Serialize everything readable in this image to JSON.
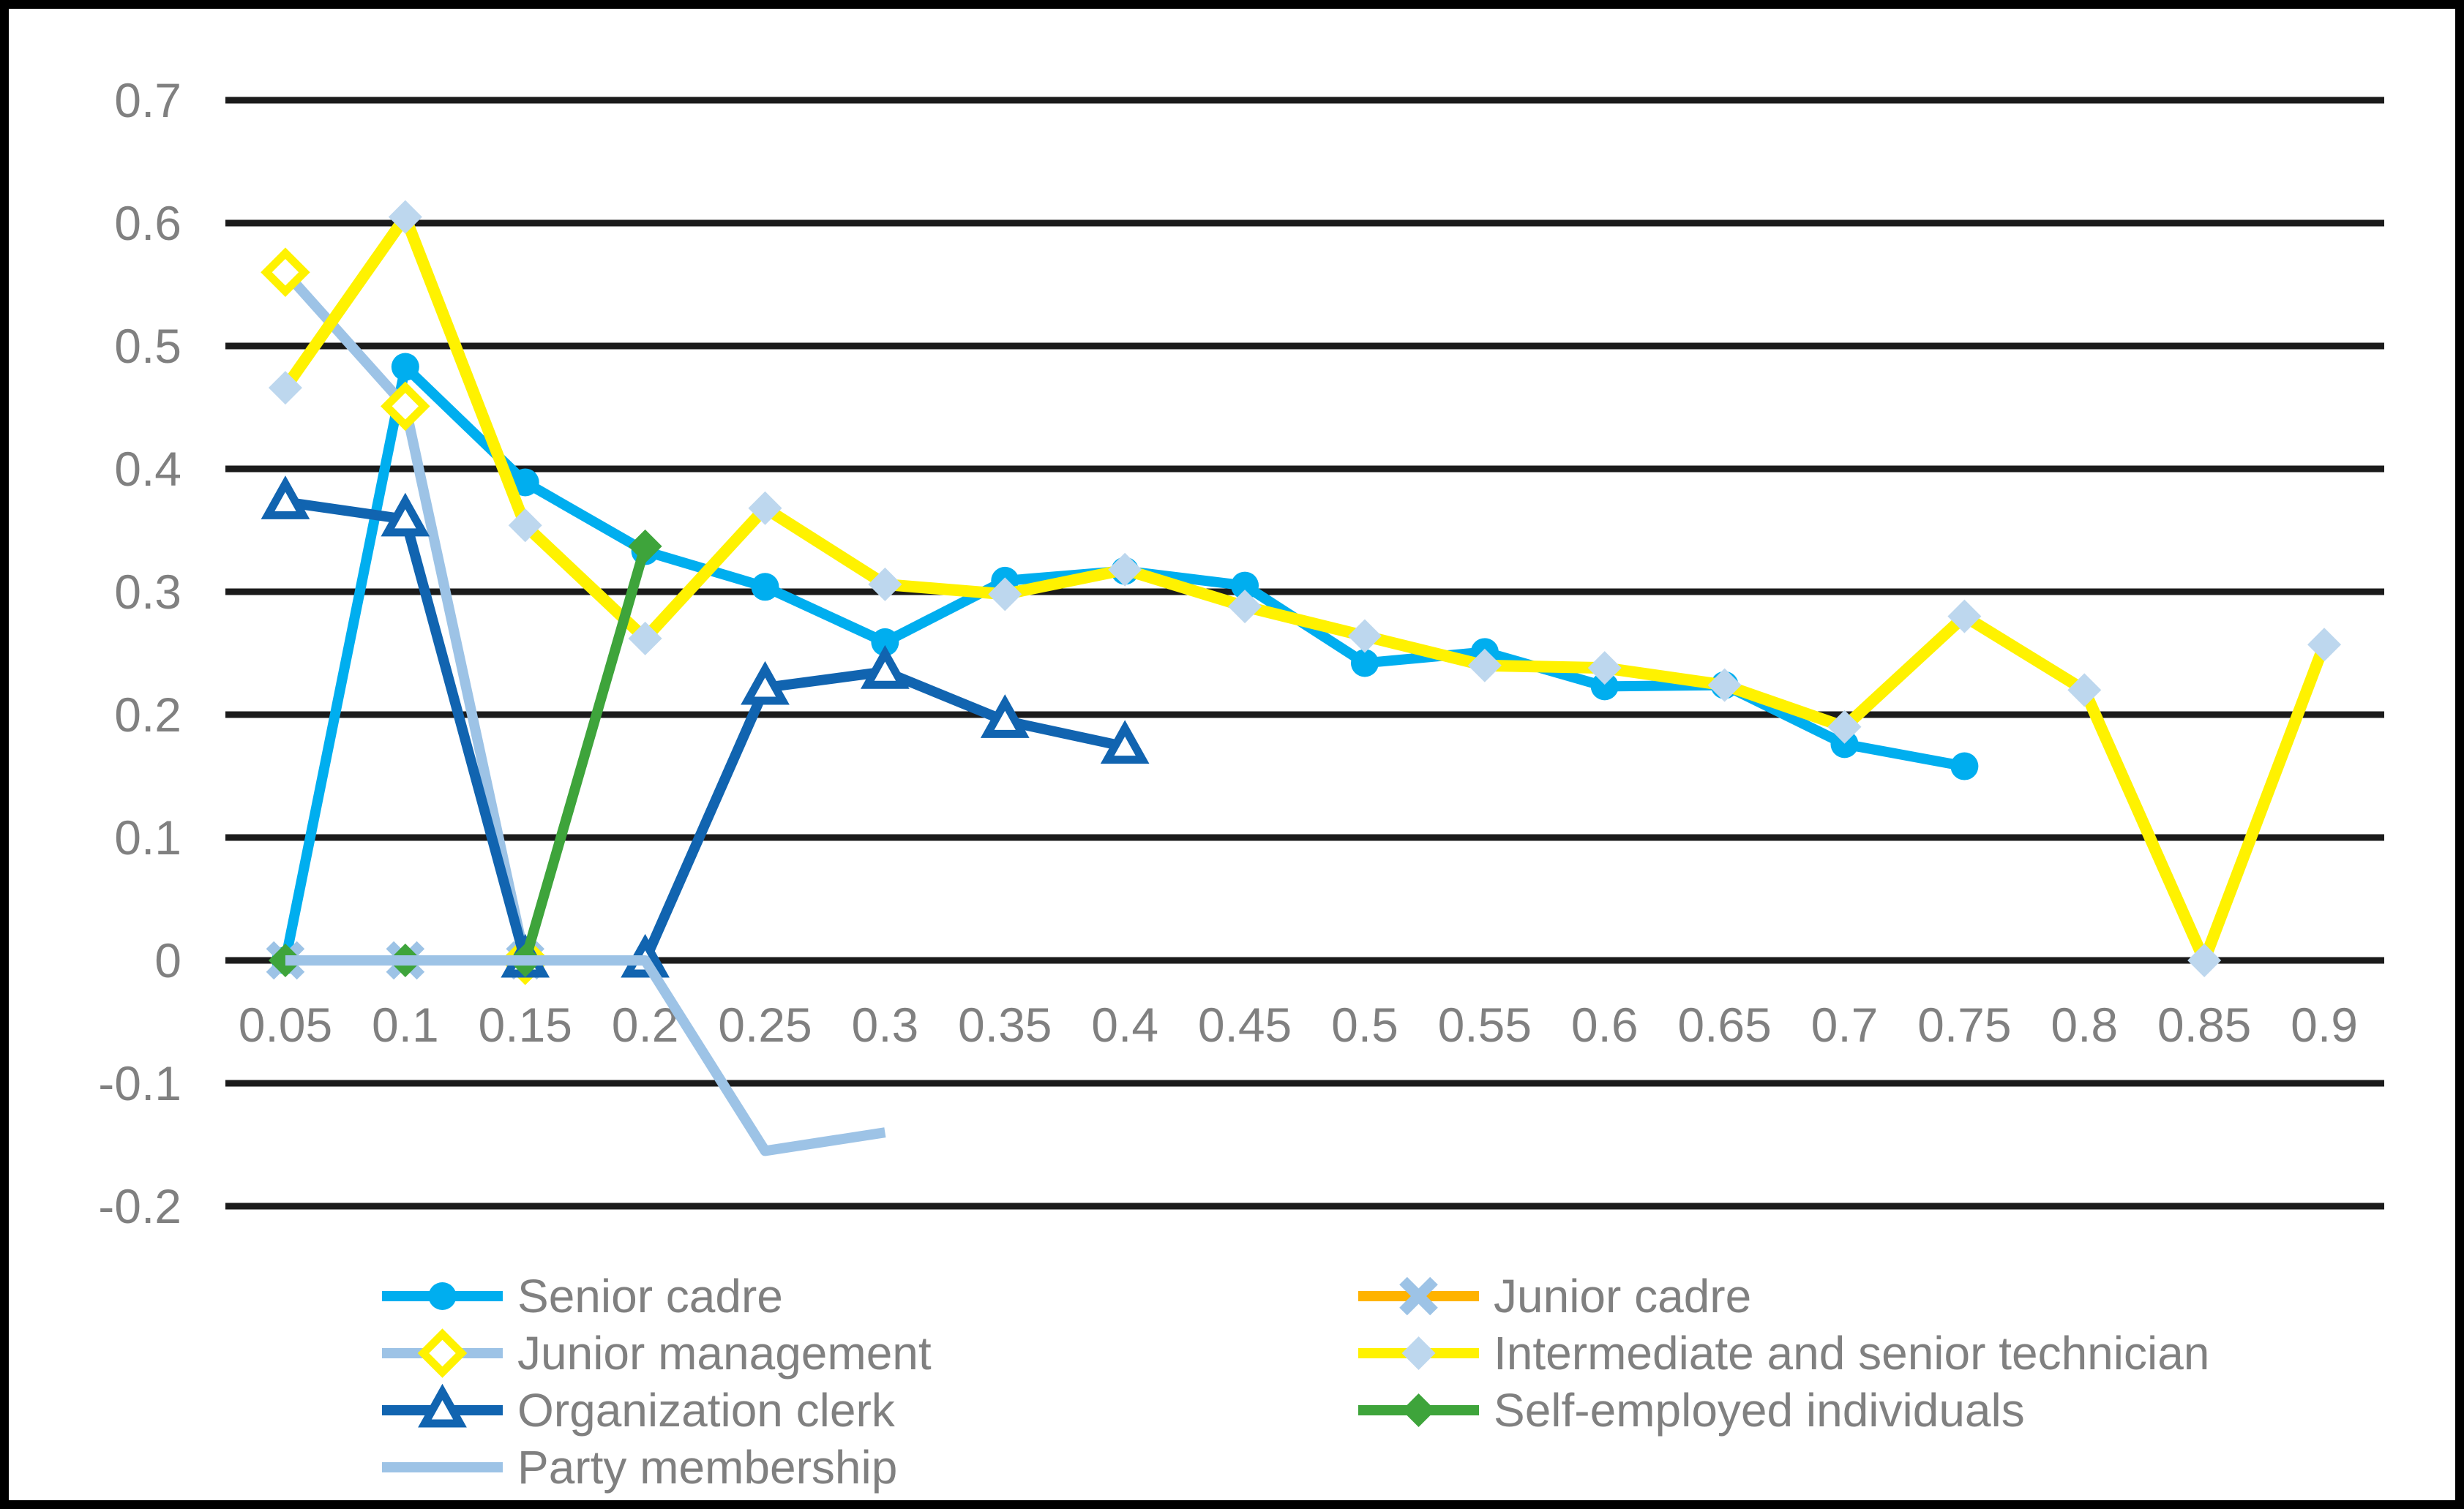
{
  "chart_data": {
    "type": "line",
    "title": "",
    "xlabel": "",
    "ylabel": "",
    "x_axis": {
      "tick_labels": [
        "0.05",
        "0.1",
        "0.15",
        "0.2",
        "0.25",
        "0.3",
        "0.35",
        "0.4",
        "0.45",
        "0.5",
        "0.55",
        "0.6",
        "0.65",
        "0.7",
        "0.75",
        "0.8",
        "0.85",
        "0.9"
      ],
      "values": [
        0.05,
        0.1,
        0.15,
        0.2,
        0.25,
        0.3,
        0.35,
        0.4,
        0.45,
        0.5,
        0.55,
        0.6,
        0.65,
        0.7,
        0.75,
        0.8,
        0.85,
        0.9
      ]
    },
    "y_axis": {
      "tick_labels": [
        "0.7",
        "0.6",
        "0.5",
        "0.4",
        "0.3",
        "0.2",
        "0.1",
        "0",
        "-0.1",
        "-0.2"
      ],
      "min": -0.2,
      "max": 0.7,
      "step": 0.1
    },
    "grid": {
      "horizontal": true,
      "vertical": false
    },
    "legend_position": "bottom-two-columns",
    "series": [
      {
        "name": "Senior cadre",
        "line_color": "#00AEEF",
        "marker": "circle",
        "marker_color": "#00AEEF",
        "values": [
          0,
          0.483,
          0.389,
          0.333,
          0.304,
          0.259,
          0.309,
          0.317,
          0.305,
          0.242,
          0.251,
          0.223,
          0.224,
          0.176,
          0.158,
          null,
          null,
          null
        ]
      },
      {
        "name": "Junior cadre",
        "line_color": "#FFB300",
        "marker": "x",
        "marker_color": "#9DC3E6",
        "values": [
          0,
          0,
          0,
          null,
          null,
          null,
          null,
          null,
          null,
          null,
          null,
          null,
          null,
          null,
          null,
          null,
          null,
          null
        ]
      },
      {
        "name": "Junior management",
        "line_color": "#9DC3E6",
        "marker": "diamond-open",
        "marker_color": "#FFF200",
        "values": [
          0.56,
          0.451,
          0,
          null,
          null,
          null,
          null,
          null,
          null,
          null,
          null,
          null,
          null,
          null,
          null,
          null,
          null,
          null
        ]
      },
      {
        "name": "Intermediate and senior technician",
        "line_color": "#FFF200",
        "marker": "diamond",
        "marker_color": "#BDD7EE",
        "values": [
          0.466,
          0.605,
          0.354,
          0.262,
          0.368,
          0.306,
          0.298,
          0.318,
          0.288,
          0.264,
          0.24,
          0.238,
          0.224,
          0.19,
          0.28,
          0.22,
          0,
          0.257
        ]
      },
      {
        "name": "Organization clerk",
        "line_color": "#1164B0",
        "marker": "triangle-open",
        "marker_color": "#1164B0",
        "values": [
          0.373,
          0.359,
          0,
          0,
          0.222,
          0.235,
          0.195,
          0.174,
          null,
          null,
          null,
          null,
          null,
          null,
          null,
          null,
          null,
          null
        ]
      },
      {
        "name": "Self-employed individuals",
        "line_color": "#3EA43B",
        "marker": "diamond",
        "marker_color": "#3EA43B",
        "values": [
          0,
          0,
          0,
          0.337,
          null,
          null,
          null,
          null,
          null,
          null,
          null,
          null,
          null,
          null,
          null,
          null,
          null,
          null
        ]
      },
      {
        "name": "Party membership",
        "line_color": "#9DC3E6",
        "marker": "none",
        "marker_color": "#9DC3E6",
        "values": [
          0,
          0,
          0,
          0,
          -0.155,
          -0.14,
          null,
          null,
          null,
          null,
          null,
          null,
          null,
          null,
          null,
          null,
          null,
          null
        ]
      }
    ],
    "legend_columns": [
      [
        0,
        2,
        4,
        6
      ],
      [
        1,
        3,
        5
      ]
    ]
  },
  "styles": {
    "tick_label_color": "#808080",
    "legend_text_color": "#808080",
    "grid_color": "#1B1B1B",
    "frame_color": "#000000",
    "background_color": "#FFFFFF"
  }
}
